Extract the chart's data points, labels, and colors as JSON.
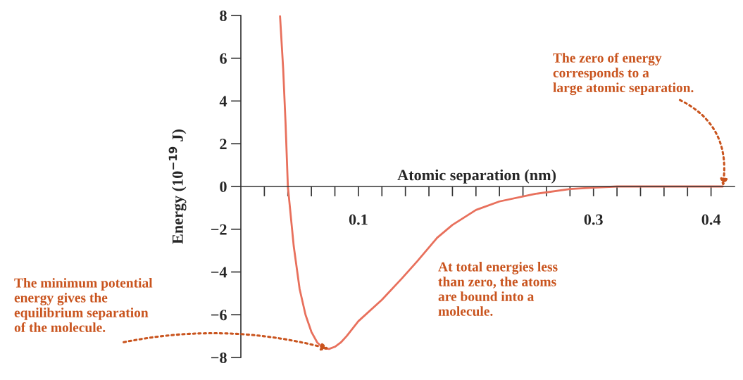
{
  "chart_data": {
    "type": "line",
    "xlabel": "Atomic separation (nm)",
    "ylabel": "Energy (10$^{−19}$ J)",
    "x": [
      0.0333,
      0.036,
      0.038,
      0.04,
      0.045,
      0.05,
      0.055,
      0.06,
      0.065,
      0.07,
      0.075,
      0.08,
      0.085,
      0.09,
      0.1,
      0.12,
      0.137,
      0.15,
      0.167,
      0.18,
      0.2,
      0.22,
      0.25,
      0.28,
      0.3,
      0.32,
      0.35,
      0.41
    ],
    "series": [
      {
        "color": "#e8705c",
        "values": [
          8,
          5.5,
          3,
          0,
          -2.8,
          -4.8,
          -6.0,
          -6.8,
          -7.3,
          -7.55,
          -7.6,
          -7.5,
          -7.3,
          -7.0,
          -6.3,
          -5.3,
          -4.3,
          -3.5,
          -2.4,
          -1.8,
          -1.1,
          -0.7,
          -0.35,
          -0.12,
          -0.05,
          0,
          0,
          0
        ]
      }
    ],
    "xlim": [
      0,
      0.42
    ],
    "ylim": [
      -8,
      8
    ],
    "xticks": [
      {
        "value": 0.02,
        "label": null
      },
      {
        "value": 0.04,
        "label": null
      },
      {
        "value": 0.06,
        "label": null
      },
      {
        "value": 0.08,
        "label": null
      },
      0.1,
      {
        "value": 0.12,
        "label": null
      },
      {
        "value": 0.14,
        "label": null
      },
      {
        "value": 0.16,
        "label": null
      },
      {
        "value": 0.18,
        "label": null
      },
      {
        "value": 0.2,
        "label": null
      },
      {
        "value": 0.22,
        "label": null
      },
      {
        "value": 0.24,
        "label": null
      },
      {
        "value": 0.26,
        "label": null
      },
      {
        "value": 0.28,
        "label": null
      },
      0.3,
      {
        "value": 0.32,
        "label": null
      },
      {
        "value": 0.34,
        "label": null
      },
      {
        "value": 0.36,
        "label": null
      },
      {
        "value": 0.38,
        "label": null
      },
      0.4
    ],
    "yticks": [
      -8,
      -6,
      -4,
      -2,
      0,
      2,
      4,
      6,
      8
    ],
    "grid": false,
    "legend": false,
    "marker": "none",
    "line_style": "solid",
    "annotations": [
      {
        "text": "The zero of energy\ncorresponds to a\nlarge atomic separation.",
        "x": 0.41,
        "y": 0
      },
      {
        "text": "The minimum potential\nenergy gives the\nequilibrium separation\nof the molecule.",
        "x": 0.075,
        "y": -7.6
      },
      "At total energies less\nthan zero, the atoms\nare bound into a\nmolecule."
    ]
  }
}
